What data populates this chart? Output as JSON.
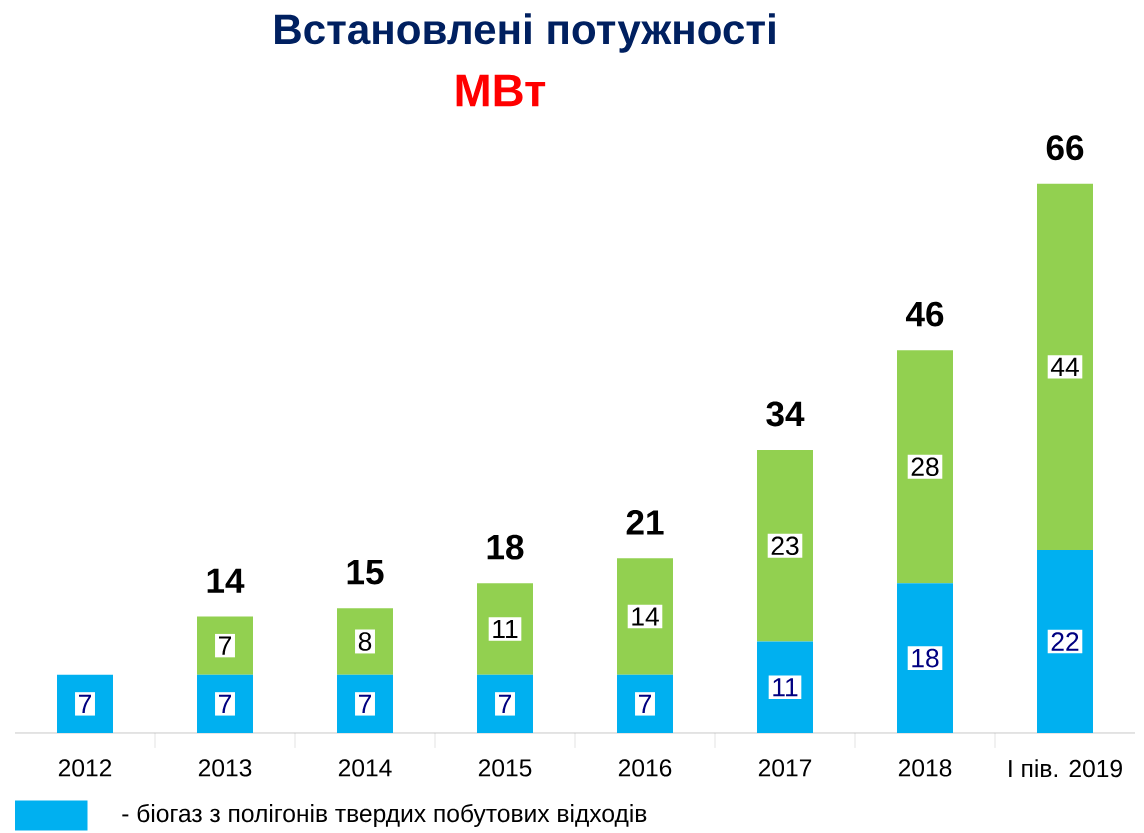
{
  "chart_data": {
    "type": "bar",
    "title": "Встановлені потужності",
    "subtitle": "МВт",
    "stacked": true,
    "data_labels": true,
    "legend": "bottom",
    "categories": [
      "2012",
      "2013",
      "2014",
      "2015",
      "2016",
      "2017",
      "2018",
      "I пів. 2019"
    ],
    "series": [
      {
        "name": "- біогаз з полігонів твердих побутових відходів",
        "color": "#00b0f0",
        "values": [
          7,
          7,
          7,
          7,
          7,
          11,
          18,
          22
        ]
      },
      {
        "color": "#92d050",
        "values": [
          null,
          7,
          8,
          11,
          14,
          23,
          28,
          44
        ]
      }
    ],
    "totals": [
      null,
      "14",
      "15",
      "18",
      "21",
      "34",
      "46",
      "66"
    ]
  }
}
